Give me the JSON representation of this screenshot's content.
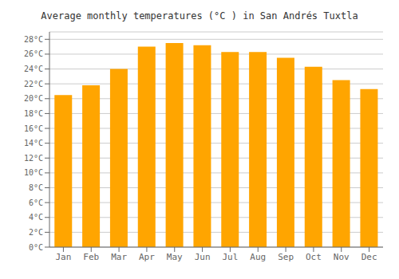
{
  "chart_data": {
    "type": "bar",
    "title": "Average monthly temperatures (°C ) in San Andrés Tuxtla",
    "categories": [
      "Jan",
      "Feb",
      "Mar",
      "Apr",
      "May",
      "Jun",
      "Jul",
      "Aug",
      "Sep",
      "Oct",
      "Nov",
      "Dec"
    ],
    "values": [
      20.5,
      21.8,
      24.0,
      27.0,
      27.5,
      27.2,
      26.3,
      26.3,
      25.5,
      24.3,
      22.5,
      21.3
    ],
    "color": "#FFA500",
    "ylim": [
      0,
      29
    ],
    "yticks": [
      {
        "value": 0,
        "label": "0°C"
      },
      {
        "value": 2,
        "label": "2°C"
      },
      {
        "value": 4,
        "label": "4°C"
      },
      {
        "value": 6,
        "label": "6°C"
      },
      {
        "value": 8,
        "label": "8°C"
      },
      {
        "value": 10,
        "label": "10°C"
      },
      {
        "value": 12,
        "label": "12°C"
      },
      {
        "value": 14,
        "label": "14°C"
      },
      {
        "value": 16,
        "label": "16°C"
      },
      {
        "value": 18,
        "label": "18°C"
      },
      {
        "value": 20,
        "label": "20°C"
      },
      {
        "value": 22,
        "label": "22°C"
      },
      {
        "value": 24,
        "label": "24°C"
      },
      {
        "value": 26,
        "label": "26°C"
      },
      {
        "value": 28,
        "label": "28°C"
      }
    ],
    "grid": true
  }
}
